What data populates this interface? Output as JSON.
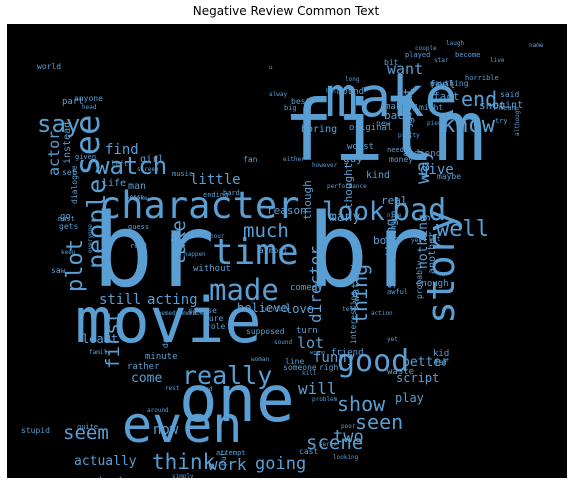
{
  "figure": {
    "title": "Negative Review Common Text"
  },
  "wordcloud": {
    "color": "#5a9fd4",
    "background": "#000000",
    "words": [
      "br",
      "br",
      "movie",
      "film",
      "one",
      "make",
      "even",
      "character",
      "time",
      "see",
      "look",
      "bad",
      "story",
      "good",
      "made",
      "watch",
      "people",
      "know",
      "say",
      "end",
      "plot",
      "really",
      "well",
      "much",
      "seen",
      "think",
      "show",
      "scene",
      "want",
      "two",
      "find",
      "thing",
      "first",
      "seem",
      "going",
      "acting",
      "little",
      "work",
      "take",
      "way",
      "actor",
      "will",
      "still",
      "director",
      "give",
      "lot",
      "funny",
      "something",
      "now",
      "come",
      "actually",
      "better",
      "least",
      "start",
      "script",
      "play",
      "nothing",
      "believe",
      "love",
      "many",
      "guy",
      "kind",
      "back",
      "feel",
      "fact",
      "found",
      "best",
      "boring",
      "thought",
      "instead",
      "part",
      "anyone",
      "world",
      "girl",
      "man",
      "life",
      "though",
      "trying",
      "watching",
      "original",
      "worst",
      "money",
      "making",
      "might",
      "said",
      "point",
      "shot",
      "new",
      "go",
      "gets",
      "saw",
      "must",
      "set",
      "stupid",
      "minute",
      "rather",
      "course",
      "day",
      "sure",
      "role",
      "supposed",
      "friend",
      "turn",
      "waste",
      "interesting",
      "kid",
      "far",
      "another",
      "probably",
      "everything",
      "book",
      "real",
      "reason",
      "almost",
      "without",
      "comedy",
      "enough",
      "maybe",
      "audience",
      "need",
      "performance",
      "however",
      "great",
      "anything",
      "become",
      "try",
      "mean",
      "long",
      "bit",
      "star",
      "laugh",
      "couple",
      "played",
      "horrible",
      "live",
      "name",
      "alway",
      "big",
      "help",
      "fan",
      "music",
      "joke",
      "left",
      "given",
      "wrong",
      "problem",
      "word",
      "rest",
      "around",
      "quite",
      "family",
      "simply",
      "attempt",
      "put",
      "looking",
      "cast",
      "poor",
      "line",
      "sound",
      "face",
      "moment",
      "seemed",
      "happen",
      "keep",
      "everyone",
      "yet",
      "action",
      "awful",
      "let",
      "yes",
      "tell",
      "either",
      "hour",
      "read",
      "guess",
      "screen",
      "sense",
      "dialogue",
      "ending",
      "hard",
      "someone",
      "right",
      "serie",
      "woman",
      "terrible",
      "head",
      "old",
      "kill",
      "nice",
      "u",
      "although",
      "piece",
      "pretty"
    ]
  }
}
